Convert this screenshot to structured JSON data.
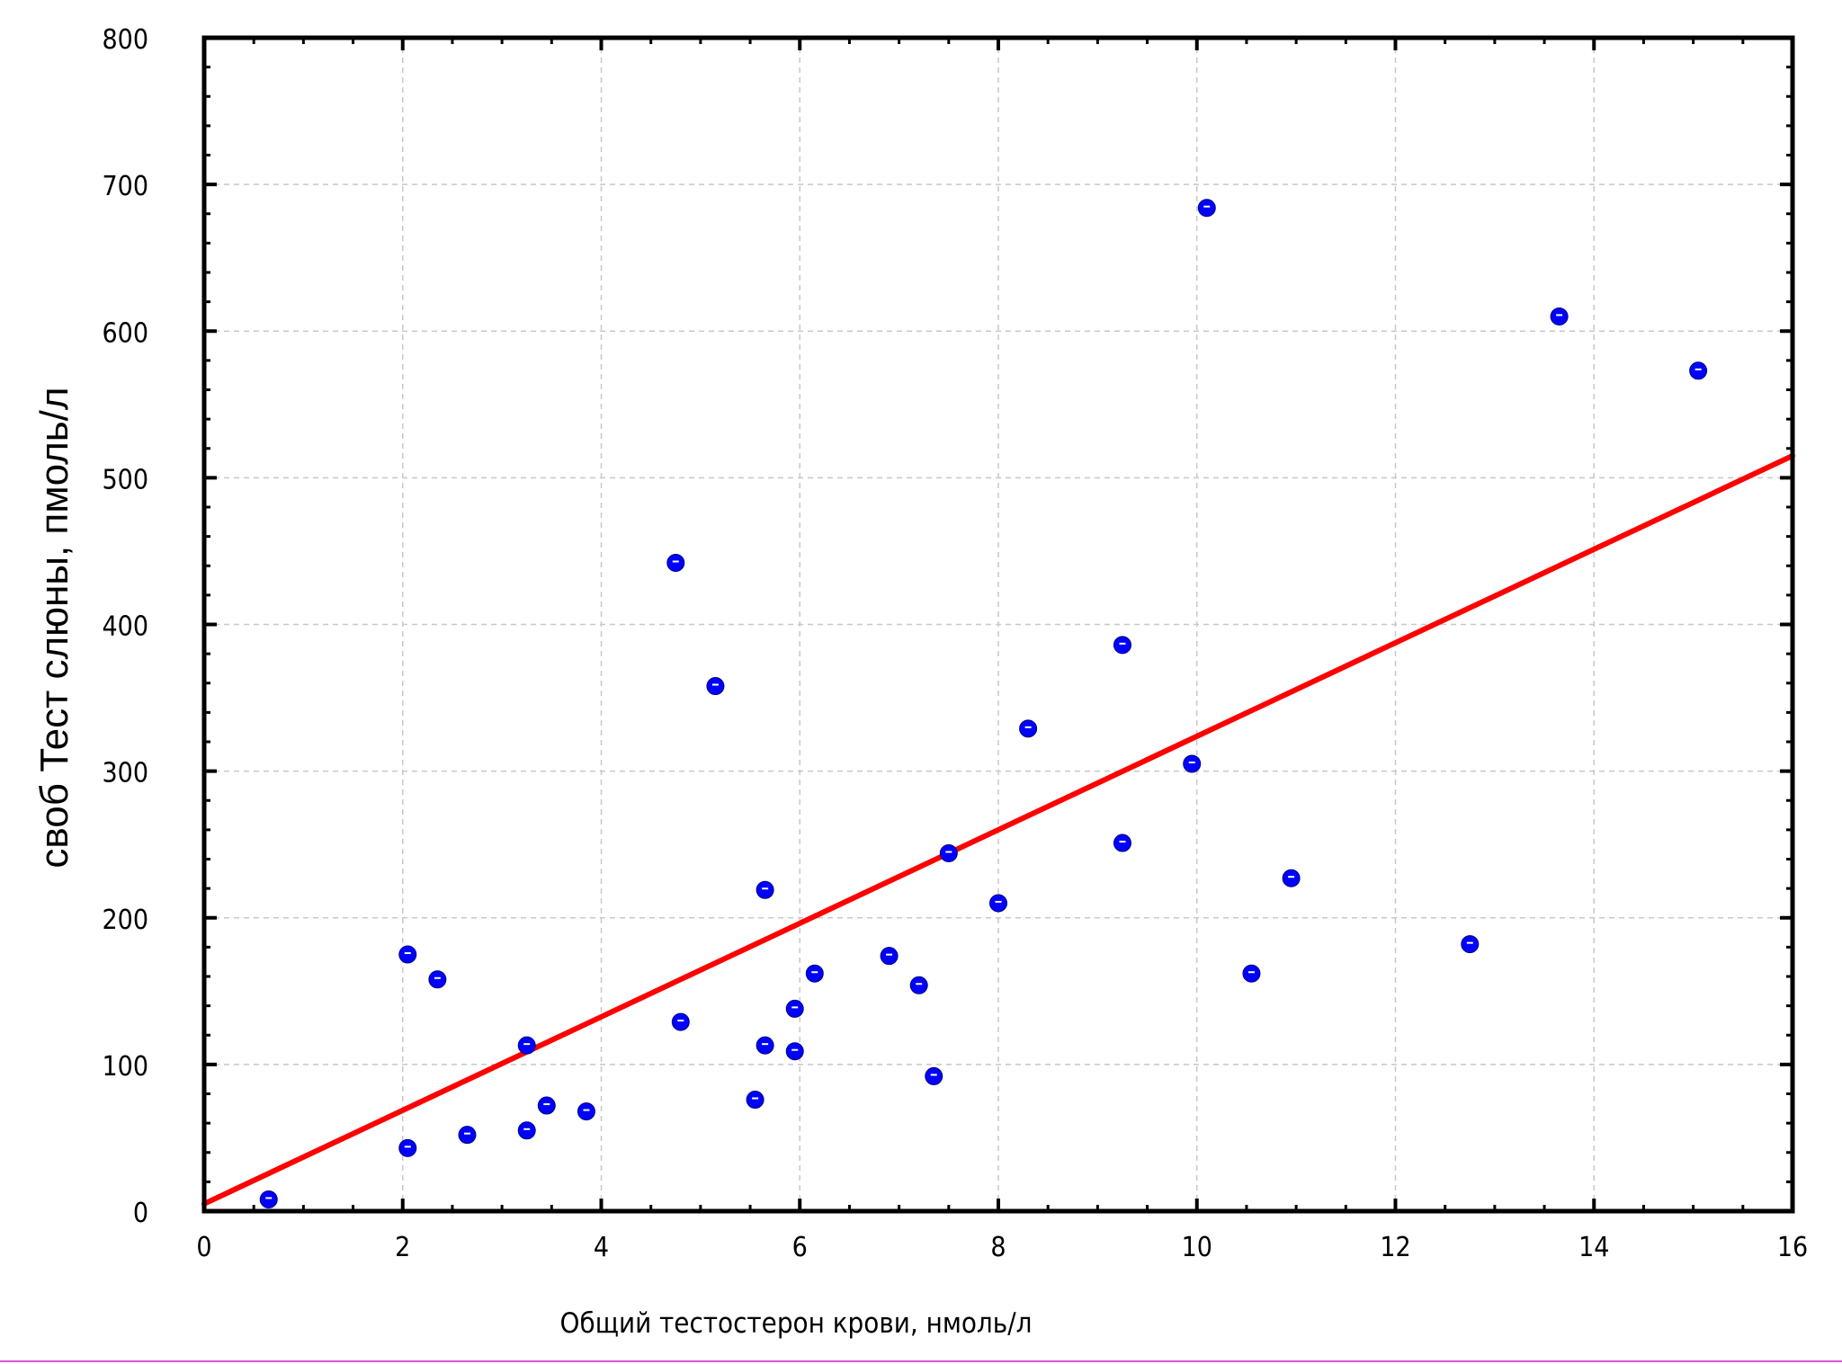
{
  "chart_data": {
    "type": "scatter",
    "title": "",
    "xlabel": "Общий тестостерон крови, нмоль/л",
    "ylabel": "своб Тест слюны, пмоль/л",
    "xlim": [
      0,
      16
    ],
    "ylim": [
      0,
      800
    ],
    "xticks": [
      0,
      2,
      4,
      6,
      8,
      10,
      12,
      14,
      16
    ],
    "yticks": [
      0,
      100,
      200,
      300,
      400,
      500,
      600,
      700,
      800
    ],
    "grid": true,
    "legend": "none",
    "series": [
      {
        "marker_color": "#0000ff",
        "points": [
          [
            0.65,
            8
          ],
          [
            2.05,
            175
          ],
          [
            2.05,
            43
          ],
          [
            2.35,
            158
          ],
          [
            2.65,
            52
          ],
          [
            3.25,
            55
          ],
          [
            3.25,
            113
          ],
          [
            3.45,
            72
          ],
          [
            3.85,
            68
          ],
          [
            4.75,
            442
          ],
          [
            4.8,
            129
          ],
          [
            5.15,
            358
          ],
          [
            5.55,
            76
          ],
          [
            5.65,
            219
          ],
          [
            5.65,
            113
          ],
          [
            5.95,
            138
          ],
          [
            5.95,
            109
          ],
          [
            6.15,
            162
          ],
          [
            6.9,
            174
          ],
          [
            7.2,
            154
          ],
          [
            7.35,
            92
          ],
          [
            7.5,
            244
          ],
          [
            8.0,
            210
          ],
          [
            8.3,
            329
          ],
          [
            9.25,
            386
          ],
          [
            9.25,
            251
          ],
          [
            9.95,
            305
          ],
          [
            10.1,
            684
          ],
          [
            10.55,
            162
          ],
          [
            10.95,
            227
          ],
          [
            12.75,
            182
          ],
          [
            13.65,
            610
          ],
          [
            15.05,
            573
          ]
        ]
      }
    ],
    "fit_line": {
      "color": "#ff0000",
      "x": [
        0,
        16
      ],
      "y": [
        5,
        515
      ]
    }
  }
}
